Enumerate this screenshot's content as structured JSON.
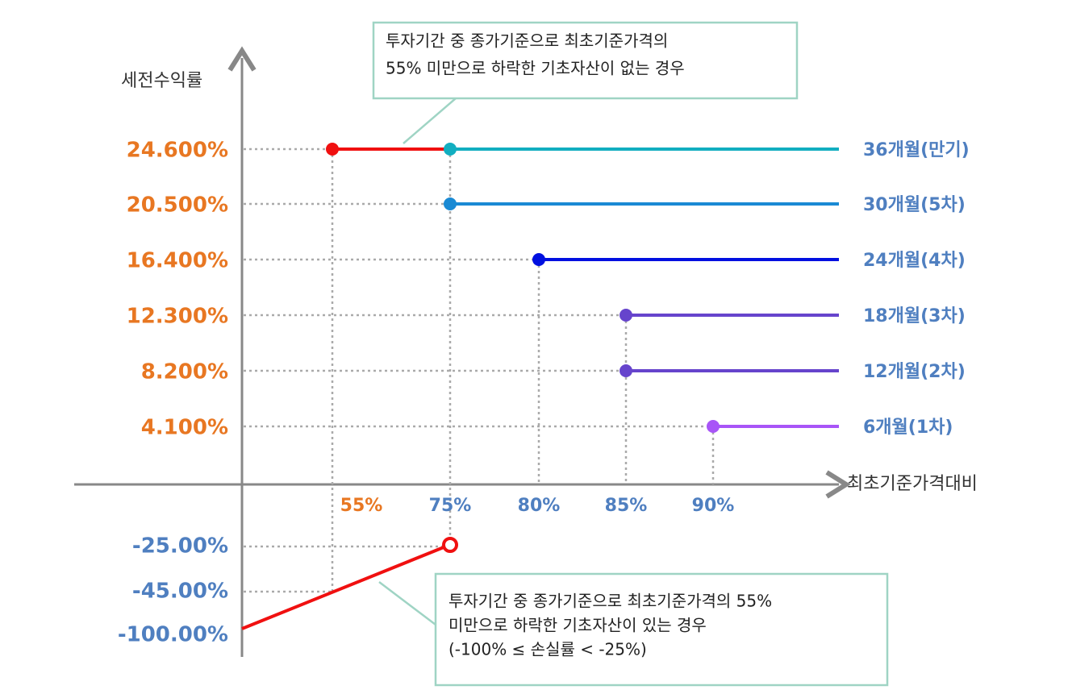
{
  "y_axis_label": "세전수익률",
  "x_axis_label": "최초기준가격대비",
  "y_labels": [
    "24.600%",
    "20.500%",
    "16.400%",
    "12.300%",
    "8.200%",
    "4.100%"
  ],
  "negative_labels": [
    "-25.00%",
    "-45.00%",
    "-100.00%"
  ],
  "x_labels": [
    "55%",
    "75%",
    "80%",
    "85%",
    "90%"
  ],
  "periods": [
    "36개월(만기)",
    "30개월(5차)",
    "24개월(4차)",
    "18개월(3차)",
    "12개월(2차)",
    "6개월(1차)"
  ],
  "callouts": [
    {
      "lines": [
        "투자기간 중 종가기준으로 최초기준가격의",
        "55% 미만으로 하락한 기초자산이 없는 경우"
      ]
    },
    {
      "lines": [
        "투자기간 중 종가기준으로 최초기준가격의 55%",
        "미만으로 하락한 기초자산이 있는 경우",
        "(-100% ≤ 손실률 < -25%)"
      ]
    }
  ]
}
